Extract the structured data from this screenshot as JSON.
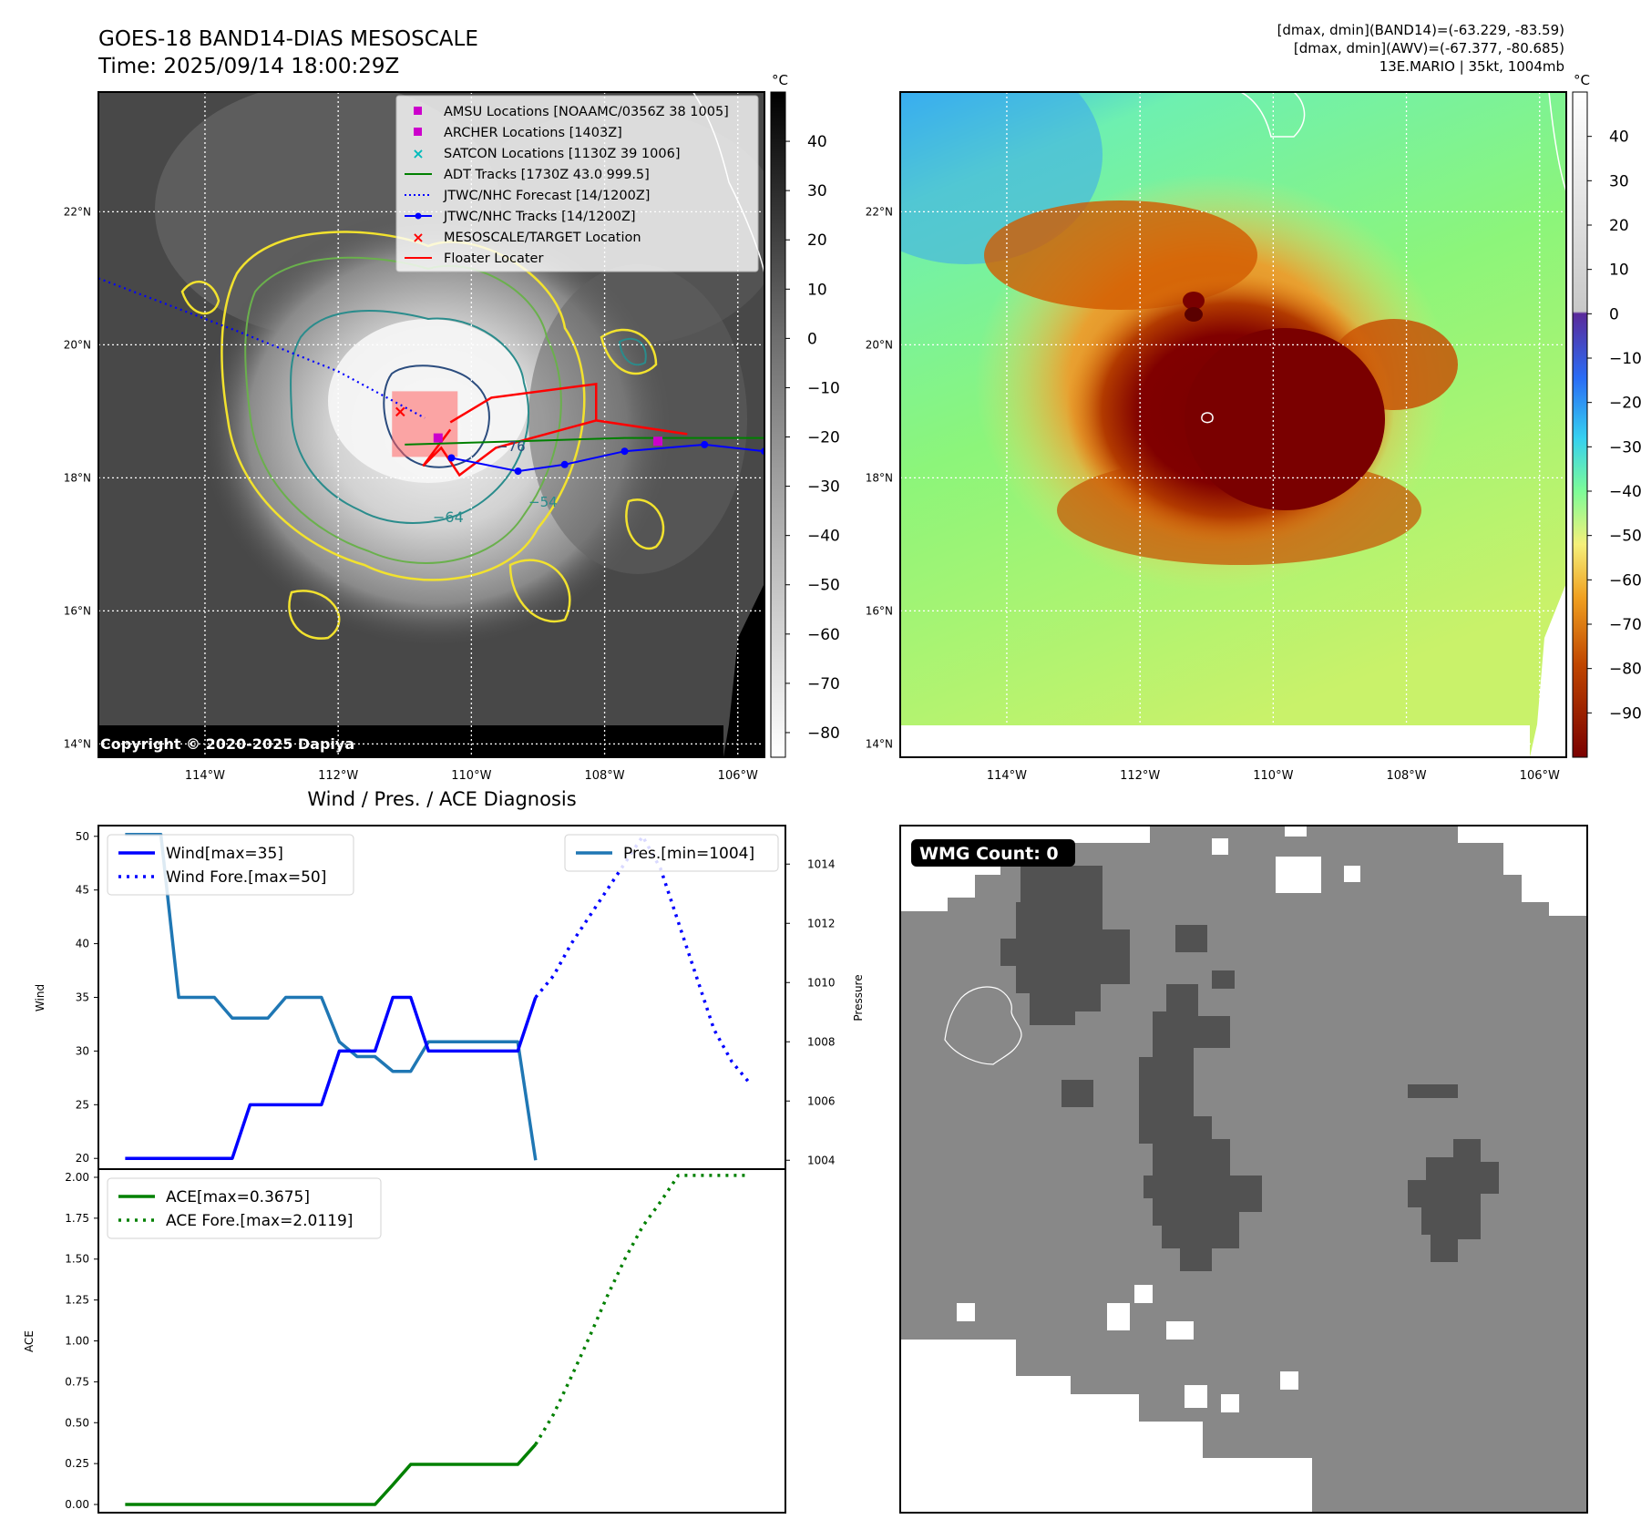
{
  "header": {
    "title_line1": "GOES-18 BAND14-DIAS MESOSCALE",
    "title_line2": "Time: 2025/09/14 18:00:29Z",
    "info_line1": "[dmax, dmin](BAND14)=(-63.229, -83.59)",
    "info_line2": "[dmax, dmin](AWV)=(-67.377, -80.685)",
    "info_line3": "13E.MARIO | 35kt, 1004mb",
    "copyright": "Copyright © 2020-2025 Dapiya"
  },
  "colors": {
    "wind": "#0000ff",
    "pressure": "#1f77b4",
    "ace": "#008000",
    "adt": "#008000",
    "forecast": "#0000ff",
    "target": "#ff0000",
    "amsu": "#cc00cc",
    "satcon": "#00bbbb",
    "contour_yellow": "#f2e22e",
    "contour_green": "#6ab04c",
    "contour_teal": "#2a8c8c",
    "contour_blue": "#2b4c7e",
    "wmg_dark": "#525252",
    "wmg_mid": "#888888"
  },
  "maps": {
    "lon_ticks": [
      "114°W",
      "112°W",
      "110°W",
      "108°W",
      "106°W"
    ],
    "lat_ticks": [
      "22°N",
      "20°N",
      "18°N",
      "16°N",
      "14°N"
    ],
    "lon_range": [
      -115.6,
      -105.6
    ],
    "lat_range": [
      13.8,
      23.8
    ],
    "ir_colorbar": {
      "unit": "°C",
      "ticks": [
        "40",
        "30",
        "20",
        "10",
        "0",
        "−10",
        "−20",
        "−30",
        "−40",
        "−50",
        "−60",
        "−70",
        "−80"
      ],
      "range": [
        -85,
        50
      ]
    },
    "awv_colorbar": {
      "unit": "°C",
      "ticks": [
        "40",
        "30",
        "20",
        "10",
        "0",
        "−10",
        "−20",
        "−30",
        "−40",
        "−50",
        "−60",
        "−70",
        "−80",
        "−90"
      ],
      "range": [
        -100,
        50
      ]
    },
    "contour_labels": [
      "−76",
      "−64",
      "−54"
    ],
    "legend": [
      {
        "label": "AMSU Locations [NOAAMC/0356Z 38 1005]",
        "icon": "square-marker",
        "color": "#cc00cc"
      },
      {
        "label": "ARCHER Locations [1403Z]",
        "icon": "square-marker",
        "color": "#cc00cc"
      },
      {
        "label": "SATCON Locations [1130Z 39 1006]",
        "icon": "x-marker",
        "color": "#00bbbb"
      },
      {
        "label": "ADT Tracks [1730Z 43.0 999.5]",
        "icon": "solid-line",
        "color": "#008000"
      },
      {
        "label": "JTWC/NHC Forecast [14/1200Z]",
        "icon": "dotted-line",
        "color": "#0000ff"
      },
      {
        "label": "JTWC/NHC Tracks [14/1200Z]",
        "icon": "line-dot",
        "color": "#0000ff"
      },
      {
        "label": "MESOSCALE/TARGET Location",
        "icon": "x-marker",
        "color": "#ff0000"
      },
      {
        "label": "Floater Locater",
        "icon": "solid-line",
        "color": "#ff0000"
      }
    ],
    "forecast_track": [
      [
        -115.6,
        21.0
      ],
      [
        -113.5,
        20.2
      ],
      [
        -112.0,
        19.6
      ],
      [
        -110.7,
        18.9
      ]
    ],
    "best_track": [
      [
        -110.3,
        18.3
      ],
      [
        -109.3,
        18.1
      ],
      [
        -108.6,
        18.2
      ],
      [
        -107.7,
        18.4
      ],
      [
        -106.5,
        18.5
      ],
      [
        -105.6,
        18.4
      ]
    ],
    "adt_track": [
      [
        -111.0,
        18.5
      ],
      [
        -109.3,
        18.55
      ],
      [
        -107.7,
        18.6
      ],
      [
        -105.6,
        18.6
      ]
    ],
    "target": [
      -111.0,
      19.0
    ],
    "amsu": [
      -107.2,
      18.55
    ],
    "archer": [
      -110.5,
      18.6
    ]
  },
  "chart_data": [
    {
      "type": "line",
      "title": "Wind / Pres. / ACE Diagnosis",
      "ylabel": "Wind",
      "y2label": "Pressure",
      "ylim": [
        19,
        51
      ],
      "y2lim": [
        1003.7,
        1015.3
      ],
      "yticks": [
        "50",
        "45",
        "40",
        "35",
        "30",
        "25",
        "20"
      ],
      "y2ticks": [
        "1014",
        "1012",
        "1010",
        "1008",
        "1006",
        "1004"
      ],
      "x": [
        0,
        1,
        2,
        3,
        4,
        5,
        6,
        7,
        8,
        9,
        10,
        11,
        12,
        13,
        14,
        15,
        16,
        17,
        18,
        19,
        20,
        21,
        22,
        23,
        24,
        25,
        26,
        27,
        28,
        29,
        30,
        31,
        32,
        33,
        34,
        35
      ],
      "series": [
        {
          "name": "Wind[max=35]",
          "axis": "left",
          "style": "solid",
          "values": [
            20,
            20,
            20,
            20,
            20,
            20,
            20,
            25,
            25,
            25,
            25,
            25,
            30,
            30,
            30,
            35,
            35,
            30,
            30,
            30,
            30,
            30,
            30,
            35,
            null,
            null,
            null,
            null,
            null,
            null,
            null,
            null,
            null,
            null,
            null,
            null
          ]
        },
        {
          "name": "Wind Fore.[max=50]",
          "axis": "left",
          "style": "dotted",
          "values": [
            null,
            null,
            null,
            null,
            null,
            null,
            null,
            null,
            null,
            null,
            null,
            null,
            null,
            null,
            null,
            null,
            null,
            null,
            null,
            null,
            null,
            null,
            null,
            35,
            37,
            40,
            42.5,
            45,
            47.5,
            50,
            47,
            42,
            37,
            32,
            29,
            27
          ]
        },
        {
          "name": "Pres.[min=1004]",
          "axis": "right",
          "style": "solid",
          "values": [
            1015,
            1015,
            1015,
            1009.5,
            1009.5,
            1009.5,
            1008.8,
            1008.8,
            1008.8,
            1009.5,
            1009.5,
            1009.5,
            1008,
            1007.5,
            1007.5,
            1007,
            1007,
            1008,
            1008,
            1008,
            1008,
            1008,
            1008,
            1004,
            null,
            null,
            null,
            null,
            null,
            null,
            null,
            null,
            null,
            null,
            null,
            null
          ]
        }
      ],
      "legend": {
        "left": "upper-left",
        "right": "upper-right"
      }
    },
    {
      "type": "line",
      "ylabel": "ACE",
      "ylim": [
        -0.05,
        2.05
      ],
      "yticks": [
        "2.00",
        "1.75",
        "1.50",
        "1.25",
        "1.00",
        "0.75",
        "0.50",
        "0.25",
        "0.00"
      ],
      "x": [
        0,
        1,
        2,
        3,
        4,
        5,
        6,
        7,
        8,
        9,
        10,
        11,
        12,
        13,
        14,
        15,
        16,
        17,
        18,
        19,
        20,
        21,
        22,
        23,
        24,
        25,
        26,
        27,
        28,
        29,
        30,
        31,
        32,
        33,
        34,
        35
      ],
      "series": [
        {
          "name": "ACE[max=0.3675]",
          "style": "solid",
          "values": [
            0,
            0,
            0,
            0,
            0,
            0,
            0,
            0,
            0,
            0,
            0,
            0,
            0,
            0,
            0,
            0.12,
            0.245,
            0.245,
            0.245,
            0.245,
            0.245,
            0.245,
            0.245,
            0.3675,
            null,
            null,
            null,
            null,
            null,
            null,
            null,
            null,
            null,
            null,
            null,
            null
          ]
        },
        {
          "name": "ACE Fore.[max=2.0119]",
          "style": "dotted",
          "values": [
            null,
            null,
            null,
            null,
            null,
            null,
            null,
            null,
            null,
            null,
            null,
            null,
            null,
            null,
            null,
            null,
            null,
            null,
            null,
            null,
            null,
            null,
            null,
            0.3675,
            0.55,
            0.78,
            1.02,
            1.27,
            1.5,
            1.7,
            1.85,
            2.0119,
            2.0119,
            2.0119,
            2.0119,
            2.0119
          ]
        }
      ],
      "legend": "upper-left"
    }
  ],
  "wmg": {
    "label": "WMG Count: 0"
  }
}
